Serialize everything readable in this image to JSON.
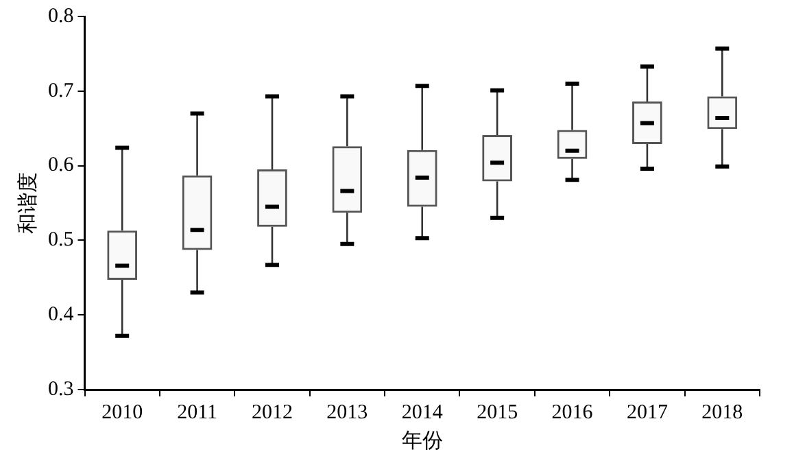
{
  "chart_data": {
    "type": "box",
    "xlabel": "年份",
    "ylabel": "和谐度",
    "categories": [
      "2010",
      "2011",
      "2012",
      "2013",
      "2014",
      "2015",
      "2016",
      "2017",
      "2018"
    ],
    "boxes": [
      {
        "low": 0.372,
        "q1": 0.447,
        "median": 0.466,
        "q3": 0.513,
        "high": 0.624
      },
      {
        "low": 0.43,
        "q1": 0.487,
        "median": 0.514,
        "q3": 0.587,
        "high": 0.67
      },
      {
        "low": 0.467,
        "q1": 0.518,
        "median": 0.545,
        "q3": 0.595,
        "high": 0.693
      },
      {
        "low": 0.495,
        "q1": 0.537,
        "median": 0.566,
        "q3": 0.626,
        "high": 0.693
      },
      {
        "low": 0.503,
        "q1": 0.545,
        "median": 0.584,
        "q3": 0.621,
        "high": 0.707
      },
      {
        "low": 0.53,
        "q1": 0.579,
        "median": 0.604,
        "q3": 0.641,
        "high": 0.701
      },
      {
        "low": 0.581,
        "q1": 0.609,
        "median": 0.62,
        "q3": 0.648,
        "high": 0.71
      },
      {
        "low": 0.596,
        "q1": 0.629,
        "median": 0.657,
        "q3": 0.686,
        "high": 0.733
      },
      {
        "low": 0.599,
        "q1": 0.649,
        "median": 0.664,
        "q3": 0.693,
        "high": 0.757
      }
    ],
    "color": "#555555",
    "ylim": [
      0.3,
      0.8
    ],
    "yticks": [
      0.3,
      0.4,
      0.5,
      0.6,
      0.7,
      0.8
    ],
    "grid": false,
    "legend": false
  }
}
